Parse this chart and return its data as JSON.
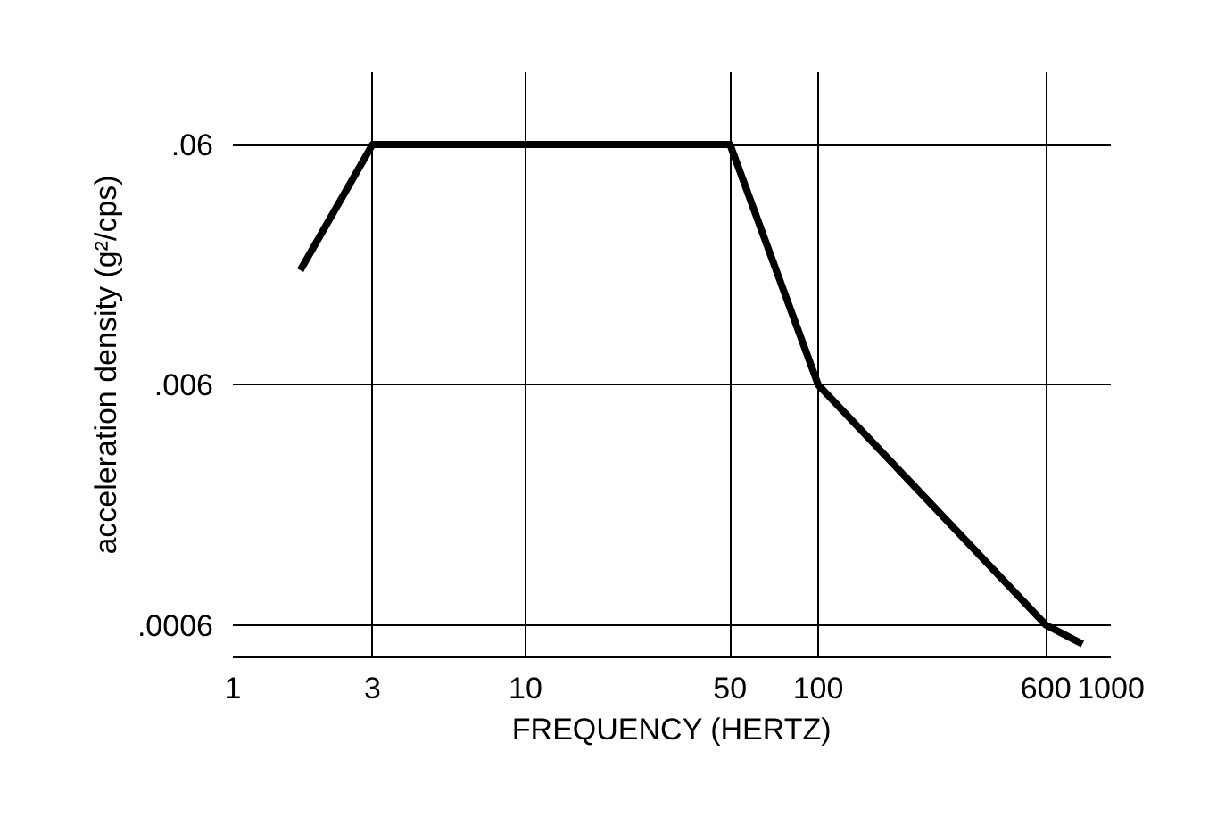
{
  "chart_data": {
    "type": "line",
    "xlabel": "FREQUENCY (HERTZ)",
    "ylabel": "acceleration density (g²/cps)",
    "x": [
      1.7,
      3,
      50,
      100,
      600,
      800
    ],
    "series": [
      {
        "color": "#000000",
        "values": [
          0.018,
          0.06,
          0.06,
          0.006,
          0.0006,
          0.0005
        ]
      }
    ],
    "log": "xy",
    "xlim": [
      1,
      1000
    ],
    "ylim": [
      0.00044,
      0.12
    ],
    "xticks": [
      1,
      3,
      10,
      50,
      100,
      600,
      1000
    ],
    "yticks": [
      {
        "value": 0.0006,
        "label": ".0006"
      },
      {
        "value": 0.006,
        "label": ".006"
      },
      {
        "value": 0.06,
        "label": ".06"
      }
    ],
    "grid": true,
    "line_style": "solid"
  }
}
